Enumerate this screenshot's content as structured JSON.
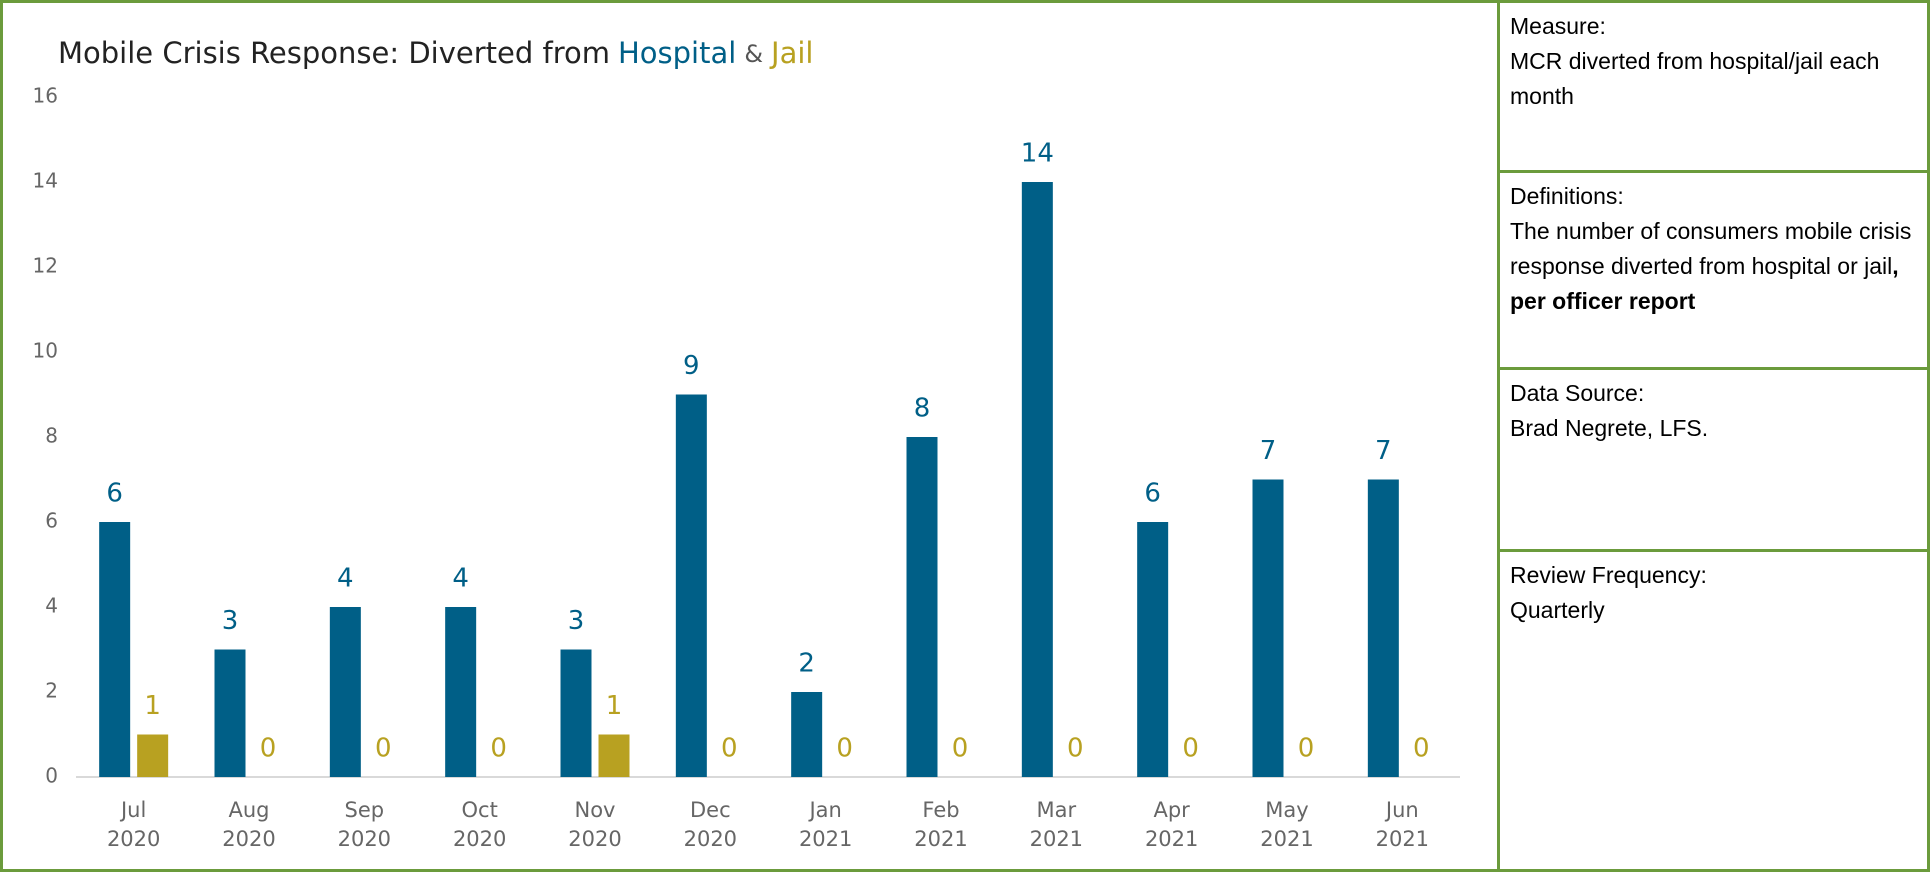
{
  "chart_data": {
    "type": "bar",
    "title_parts": [
      "Mobile Crisis Response: Diverted from",
      "&"
    ],
    "categories": [
      [
        "Jul",
        "2020"
      ],
      [
        "Aug",
        "2020"
      ],
      [
        "Sep",
        "2020"
      ],
      [
        "Oct",
        "2020"
      ],
      [
        "Nov",
        "2020"
      ],
      [
        "Dec",
        "2020"
      ],
      [
        "Jan",
        "2021"
      ],
      [
        "Feb",
        "2021"
      ],
      [
        "Mar",
        "2021"
      ],
      [
        "Apr",
        "2021"
      ],
      [
        "May",
        "2021"
      ],
      [
        "Jun",
        "2021"
      ]
    ],
    "series": [
      {
        "name": "Hospital",
        "color": "#005f87",
        "values": [
          6,
          3,
          4,
          4,
          3,
          9,
          2,
          8,
          14,
          6,
          7,
          7
        ]
      },
      {
        "name": "Jail",
        "color": "#b8a121",
        "values": [
          1,
          0,
          0,
          0,
          1,
          0,
          0,
          0,
          0,
          0,
          0,
          0
        ]
      }
    ],
    "ylim": [
      0,
      16
    ],
    "yticks": [
      0,
      2,
      4,
      6,
      8,
      10,
      12,
      14,
      16
    ],
    "grid": false
  },
  "panel": [
    {
      "label": "Measure:",
      "text": [
        "MCR diverted from hospital/jail each month"
      ]
    },
    {
      "label": "Definitions:",
      "text": [
        "The number of consumers mobile crisis response diverted from hospital or jail",
        ", per officer report"
      ]
    },
    {
      "label": "Data Source:",
      "text": [
        "Brad Negrete, LFS."
      ]
    },
    {
      "label": "Review Frequency:",
      "text": [
        "Quarterly"
      ]
    }
  ]
}
